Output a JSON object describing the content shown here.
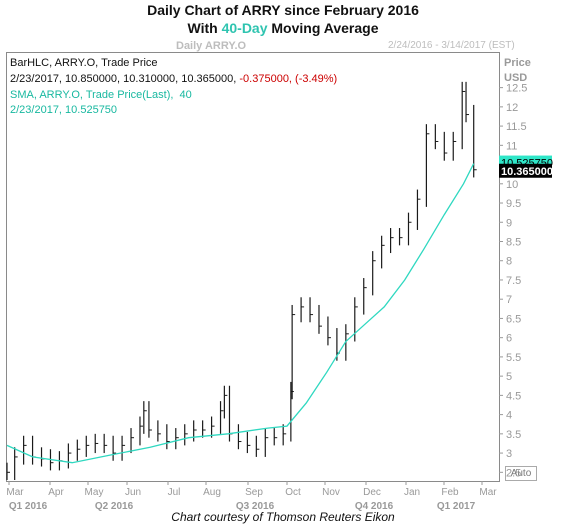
{
  "title": {
    "line1": "Daily Chart of ARRY since February 2016",
    "line2_prefix": "With ",
    "line2_highlight": "40-Day",
    "line2_suffix": " Moving Average"
  },
  "header": {
    "symbol_watermark": "Daily ARRY.O",
    "date_range": "2/24/2016 - 3/14/2017 (EST)"
  },
  "legend": {
    "bar_series": "BarHLC, ARRY.O, Trade Price",
    "bar_values": "2/23/2017, 10.850000, 10.310000, 10.365000,",
    "bar_change": "-0.375000, (-3.49%)",
    "sma_series": "SMA, ARRY.O, Trade Price(Last),  40",
    "sma_values": "2/23/2017, 10.525750"
  },
  "axis_header": {
    "price": "Price",
    "currency": "USD"
  },
  "auto_label": "Auto",
  "footer": "Chart courtesy of Thomson Reuters Eikon",
  "colors": {
    "price_bars": "#1a1a1a",
    "sma_line": "#2fd8c0",
    "sma_tag": "#2fe6c8",
    "price_tag": "#000000",
    "negative_change": "#cc0000",
    "legend_sma_text": "#18b8a0"
  },
  "chart_data": {
    "type": "line",
    "title": "Daily Chart of ARRY since February 2016 With 40-Day Moving Average",
    "xlabel": "",
    "ylabel": "Price USD",
    "ylim": [
      2.3,
      13.4
    ],
    "y_ticks": [
      "2.5",
      "3",
      "3.5",
      "4",
      "4.5",
      "5",
      "5.5",
      "6",
      "6.5",
      "7",
      "7.5",
      "8",
      "8.5",
      "9",
      "9.5",
      "10",
      "10.5",
      "11",
      "11.5",
      "12",
      "12.5"
    ],
    "x_month_labels": [
      "Mar",
      "Apr",
      "May",
      "Jun",
      "Jul",
      "Aug",
      "Sep",
      "Oct",
      "Nov",
      "Dec",
      "Jan",
      "Feb",
      "Mar"
    ],
    "x_quarter_labels": [
      "Q1 2016",
      "Q2 2016",
      "Q3 2016",
      "Q4 2016",
      "Q1 2017"
    ],
    "last_values": {
      "price_close": "10.365000",
      "sma": "10.525750"
    },
    "series": [
      {
        "name": "ARRY.O Trade Price (BarHLC)",
        "style": "hlc_bars",
        "points": [
          {
            "date": "2016-02-24",
            "close": 2.5
          },
          {
            "date": "2016-03-01",
            "close": 2.9
          },
          {
            "date": "2016-03-08",
            "close": 3.2
          },
          {
            "date": "2016-03-15",
            "close": 2.9
          },
          {
            "date": "2016-03-22",
            "close": 2.85
          },
          {
            "date": "2016-03-29",
            "close": 2.75
          },
          {
            "date": "2016-04-05",
            "close": 2.8
          },
          {
            "date": "2016-04-12",
            "close": 3.0
          },
          {
            "date": "2016-04-19",
            "close": 3.1
          },
          {
            "date": "2016-04-26",
            "close": 3.2
          },
          {
            "date": "2016-05-03",
            "close": 3.25
          },
          {
            "date": "2016-05-10",
            "close": 3.2
          },
          {
            "date": "2016-05-17",
            "close": 3.0
          },
          {
            "date": "2016-05-24",
            "close": 3.2
          },
          {
            "date": "2016-05-31",
            "close": 3.4
          },
          {
            "date": "2016-06-07",
            "close": 3.7
          },
          {
            "date": "2016-06-10",
            "close": 4.1
          },
          {
            "date": "2016-06-14",
            "close": 3.6
          },
          {
            "date": "2016-06-21",
            "close": 3.5
          },
          {
            "date": "2016-06-28",
            "close": 3.3
          },
          {
            "date": "2016-07-05",
            "close": 3.4
          },
          {
            "date": "2016-07-12",
            "close": 3.5
          },
          {
            "date": "2016-07-19",
            "close": 3.6
          },
          {
            "date": "2016-07-26",
            "close": 3.6
          },
          {
            "date": "2016-08-02",
            "close": 3.7
          },
          {
            "date": "2016-08-09",
            "close": 4.1
          },
          {
            "date": "2016-08-12",
            "close": 4.5
          },
          {
            "date": "2016-08-16",
            "close": 3.5
          },
          {
            "date": "2016-08-23",
            "close": 3.3
          },
          {
            "date": "2016-08-30",
            "close": 3.2
          },
          {
            "date": "2016-09-06",
            "close": 3.1
          },
          {
            "date": "2016-09-13",
            "close": 3.4
          },
          {
            "date": "2016-09-20",
            "close": 3.4
          },
          {
            "date": "2016-09-27",
            "close": 3.5
          },
          {
            "date": "2016-10-03",
            "close": 4.6
          },
          {
            "date": "2016-10-04",
            "close": 6.6
          },
          {
            "date": "2016-10-11",
            "close": 6.8
          },
          {
            "date": "2016-10-18",
            "close": 6.6
          },
          {
            "date": "2016-10-25",
            "close": 6.3
          },
          {
            "date": "2016-11-01",
            "close": 6.0
          },
          {
            "date": "2016-11-08",
            "close": 5.6
          },
          {
            "date": "2016-11-15",
            "close": 6.1
          },
          {
            "date": "2016-11-22",
            "close": 6.8
          },
          {
            "date": "2016-11-29",
            "close": 7.3
          },
          {
            "date": "2016-12-06",
            "close": 8.0
          },
          {
            "date": "2016-12-13",
            "close": 8.4
          },
          {
            "date": "2016-12-20",
            "close": 8.6
          },
          {
            "date": "2016-12-27",
            "close": 8.6
          },
          {
            "date": "2017-01-03",
            "close": 9.0
          },
          {
            "date": "2017-01-10",
            "close": 9.6
          },
          {
            "date": "2017-01-17",
            "close": 11.3
          },
          {
            "date": "2017-01-24",
            "close": 11.1
          },
          {
            "date": "2017-01-31",
            "close": 10.8
          },
          {
            "date": "2017-02-07",
            "close": 11.1
          },
          {
            "date": "2017-02-14",
            "close": 12.4
          },
          {
            "date": "2017-02-17",
            "close": 11.8
          },
          {
            "date": "2017-02-23",
            "close": 10.365
          }
        ]
      },
      {
        "name": "SMA 40",
        "style": "line",
        "points": [
          {
            "date": "2016-02-24",
            "value": 3.2
          },
          {
            "date": "2016-03-15",
            "value": 2.9
          },
          {
            "date": "2016-04-15",
            "value": 2.75
          },
          {
            "date": "2016-05-15",
            "value": 2.95
          },
          {
            "date": "2016-06-15",
            "value": 3.15
          },
          {
            "date": "2016-07-15",
            "value": 3.4
          },
          {
            "date": "2016-08-15",
            "value": 3.5
          },
          {
            "date": "2016-09-15",
            "value": 3.65
          },
          {
            "date": "2016-09-30",
            "value": 3.7
          },
          {
            "date": "2016-10-15",
            "value": 4.3
          },
          {
            "date": "2016-10-31",
            "value": 5.1
          },
          {
            "date": "2016-11-15",
            "value": 5.9
          },
          {
            "date": "2016-11-30",
            "value": 6.35
          },
          {
            "date": "2016-12-15",
            "value": 6.8
          },
          {
            "date": "2016-12-31",
            "value": 7.5
          },
          {
            "date": "2017-01-15",
            "value": 8.3
          },
          {
            "date": "2017-01-31",
            "value": 9.2
          },
          {
            "date": "2017-02-15",
            "value": 10.0
          },
          {
            "date": "2017-02-23",
            "value": 10.52575
          }
        ]
      }
    ]
  }
}
